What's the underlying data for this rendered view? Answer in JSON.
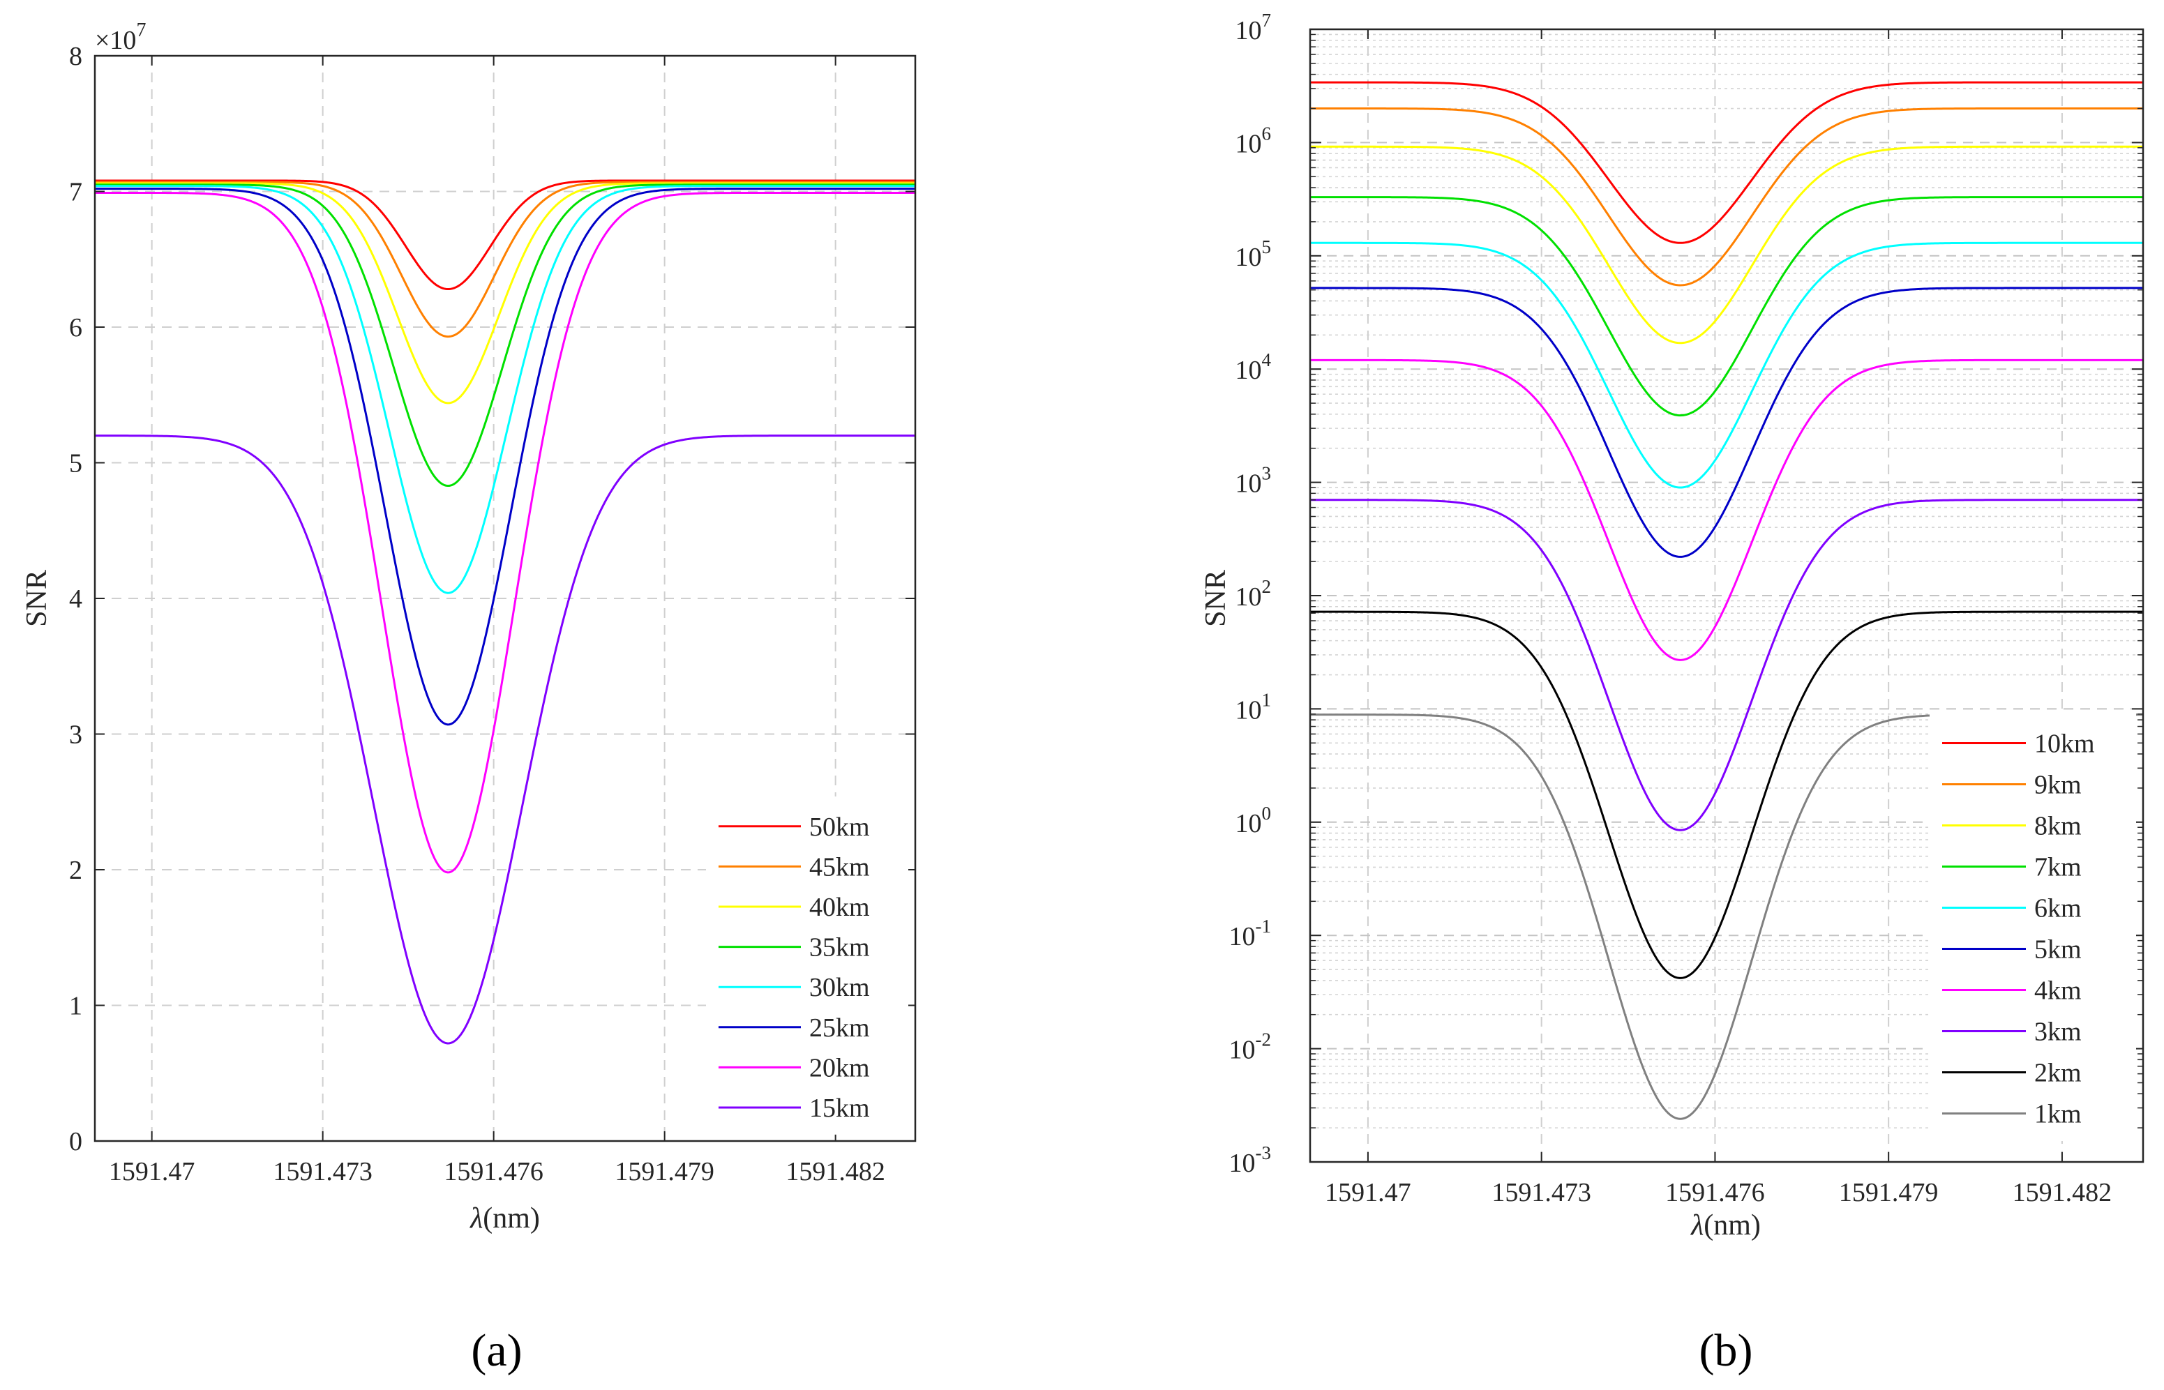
{
  "chart_data": [
    {
      "type": "line",
      "panel_label": "(a)",
      "xlabel": "λ(nm)",
      "ylabel": "SNR",
      "yscale": "linear",
      "exponent_label": "×10",
      "exponent_power": "7",
      "xlim": [
        1591.469,
        1591.4834
      ],
      "ylim": [
        0,
        8
      ],
      "xticks": [
        1591.47,
        1591.473,
        1591.476,
        1591.479,
        1591.482
      ],
      "xtick_labels": [
        "1591.47",
        "1591.473",
        "1591.476",
        "1591.479",
        "1591.482"
      ],
      "yticks": [
        0,
        1,
        2,
        3,
        4,
        5,
        6,
        7,
        8
      ],
      "ytick_labels": [
        "0",
        "1",
        "2",
        "3",
        "4",
        "5",
        "6",
        "7",
        "8"
      ],
      "grid": true,
      "legend_position": "bottom-right",
      "center": 1591.4752,
      "series": [
        {
          "name": "50km",
          "color": "#ff0000",
          "baseline": 7.08,
          "min": 6.28,
          "width": 0.00105
        },
        {
          "name": "45km",
          "color": "#ff8000",
          "baseline": 7.07,
          "min": 5.93,
          "width": 0.00115
        },
        {
          "name": "40km",
          "color": "#ffff00",
          "baseline": 7.06,
          "min": 5.44,
          "width": 0.00125
        },
        {
          "name": "35km",
          "color": "#00e000",
          "baseline": 7.05,
          "min": 4.83,
          "width": 0.00135
        },
        {
          "name": "30km",
          "color": "#00ffff",
          "baseline": 7.04,
          "min": 4.04,
          "width": 0.00145
        },
        {
          "name": "25km",
          "color": "#0000c8",
          "baseline": 7.02,
          "min": 3.07,
          "width": 0.00155
        },
        {
          "name": "20km",
          "color": "#ff00ff",
          "baseline": 6.99,
          "min": 1.98,
          "width": 0.00165
        },
        {
          "name": "15km",
          "color": "#8000ff",
          "baseline": 5.2,
          "min": 0.72,
          "width": 0.00185
        }
      ]
    },
    {
      "type": "line",
      "panel_label": "(b)",
      "xlabel": "λ(nm)",
      "ylabel": "SNR",
      "yscale": "log",
      "xlim": [
        1591.469,
        1591.4834
      ],
      "ylim": [
        0.001,
        10000000
      ],
      "xticks": [
        1591.47,
        1591.473,
        1591.476,
        1591.479,
        1591.482
      ],
      "xtick_labels": [
        "1591.47",
        "1591.473",
        "1591.476",
        "1591.479",
        "1591.482"
      ],
      "ytick_exponents": [
        "-3",
        "-2",
        "-1",
        "0",
        "1",
        "2",
        "3",
        "4",
        "5",
        "6",
        "7"
      ],
      "ytick_base": "10",
      "grid": true,
      "legend_position": "bottom-right",
      "center": 1591.4754,
      "series": [
        {
          "name": "10km",
          "color": "#ff0000",
          "baseline": 3400000,
          "min": 130000,
          "width": 0.00175
        },
        {
          "name": "9km",
          "color": "#ff8000",
          "baseline": 2000000,
          "min": 55000,
          "width": 0.00175
        },
        {
          "name": "8km",
          "color": "#ffff00",
          "baseline": 920000,
          "min": 17000,
          "width": 0.00175
        },
        {
          "name": "7km",
          "color": "#00e000",
          "baseline": 330000,
          "min": 3900,
          "width": 0.00175
        },
        {
          "name": "6km",
          "color": "#00ffff",
          "baseline": 130000,
          "min": 900,
          "width": 0.00175
        },
        {
          "name": "5km",
          "color": "#0000c8",
          "baseline": 52000,
          "min": 220,
          "width": 0.00175
        },
        {
          "name": "4km",
          "color": "#ff00ff",
          "baseline": 12000,
          "min": 27,
          "width": 0.00175
        },
        {
          "name": "3km",
          "color": "#8000ff",
          "baseline": 700,
          "min": 0.85,
          "width": 0.00175
        },
        {
          "name": "2km",
          "color": "#000000",
          "baseline": 72,
          "min": 0.042,
          "width": 0.00175
        },
        {
          "name": "1km",
          "color": "#808080",
          "baseline": 8.9,
          "min": 0.0024,
          "width": 0.00175
        }
      ]
    }
  ]
}
